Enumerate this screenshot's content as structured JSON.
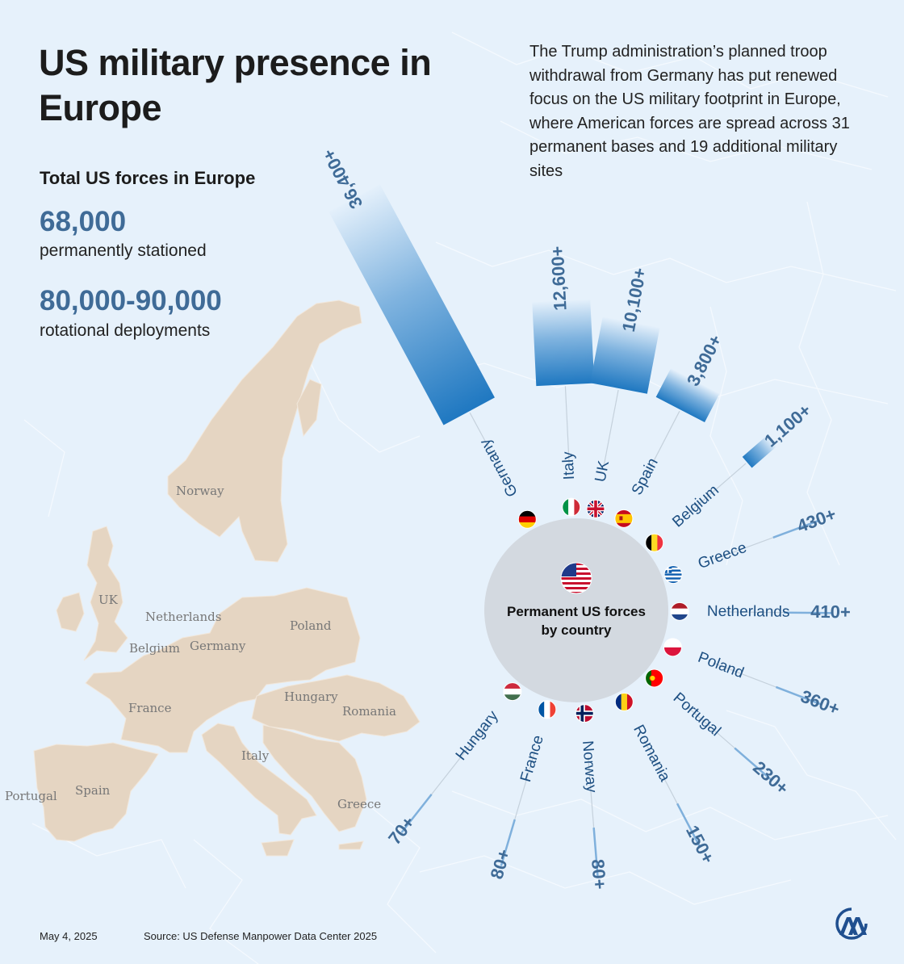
{
  "title": "US military presence in Europe",
  "intro": "The Trump administration’s planned troop withdrawal from Germany has put renewed focus on the US military footprint in Europe, where American forces are spread across 31 permanent bases and 19 additional military sites",
  "stats": {
    "heading": "Total US forces in Europe",
    "permanent_value": "68,000",
    "permanent_label": "permanently stationed",
    "rotational_value": "80,000-90,000",
    "rotational_label": "rotational deployments"
  },
  "map_labels": {
    "norway": "Norway",
    "uk": "UK",
    "netherlands": "Netherlands",
    "belgium": "Belgium",
    "germany": "Germany",
    "poland": "Poland",
    "france": "France",
    "hungary": "Hungary",
    "romania": "Romania",
    "italy": "Italy",
    "portugal": "Portugal",
    "spain": "Spain",
    "greece": "Greece"
  },
  "center_label": "Permanent US forces by country",
  "chart_data": {
    "type": "bar",
    "layout": "radial",
    "title": "Permanent US forces by country",
    "categories": [
      "Germany",
      "Italy",
      "UK",
      "Spain",
      "Belgium",
      "Greece",
      "Netherlands",
      "Poland",
      "Portugal",
      "Romania",
      "Norway",
      "France",
      "Hungary"
    ],
    "values": [
      36400,
      12600,
      10100,
      3800,
      1100,
      430,
      410,
      360,
      230,
      150,
      80,
      80,
      70
    ],
    "value_labels": [
      "36,400+",
      "12,600+",
      "10,100+",
      "3,800+",
      "1,100+",
      "430+",
      "410+",
      "360+",
      "230+",
      "150+",
      "80+",
      "80+",
      "70+"
    ],
    "colors": {
      "bar": "#1f78c1",
      "value_text": "#3f6b97",
      "country_text": "#1d4f82"
    }
  },
  "footer": {
    "date": "May 4, 2025",
    "source": "Source: US Defense Manpower Data Center 2025"
  },
  "logo_name": "aa-agency-logo-icon"
}
